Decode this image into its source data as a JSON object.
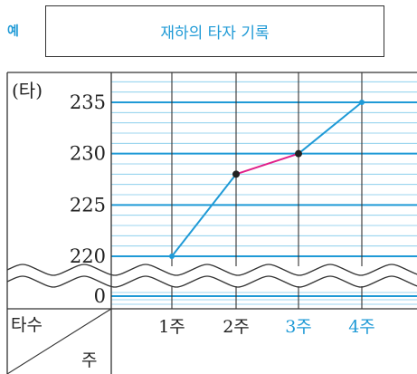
{
  "example_label": "예",
  "title": "재하의 타자 기록",
  "chart_data": {
    "type": "line",
    "title": "재하의 타자 기록",
    "ylabel": "(타)",
    "categories": [
      "1주",
      "2주",
      "3주",
      "4주"
    ],
    "values": [
      220,
      228,
      230,
      235
    ],
    "y_ticks": [
      "235",
      "230",
      "225",
      "220",
      "0"
    ],
    "ylim": [
      220,
      235
    ],
    "axis_break": true,
    "grid": true,
    "corner_row_label": "타수",
    "corner_col_label": "주",
    "colors": {
      "main_line": "#1f9ad6",
      "highlight_segment": "#e0218a",
      "grid_major": "#1f9ad6",
      "grid_minor": "#7cc8ea",
      "frame": "#333333",
      "highlight_tick_labels": "#1f9ad6"
    },
    "highlight_segment_index": 1,
    "highlight_tick_indices": [
      2,
      3
    ]
  }
}
